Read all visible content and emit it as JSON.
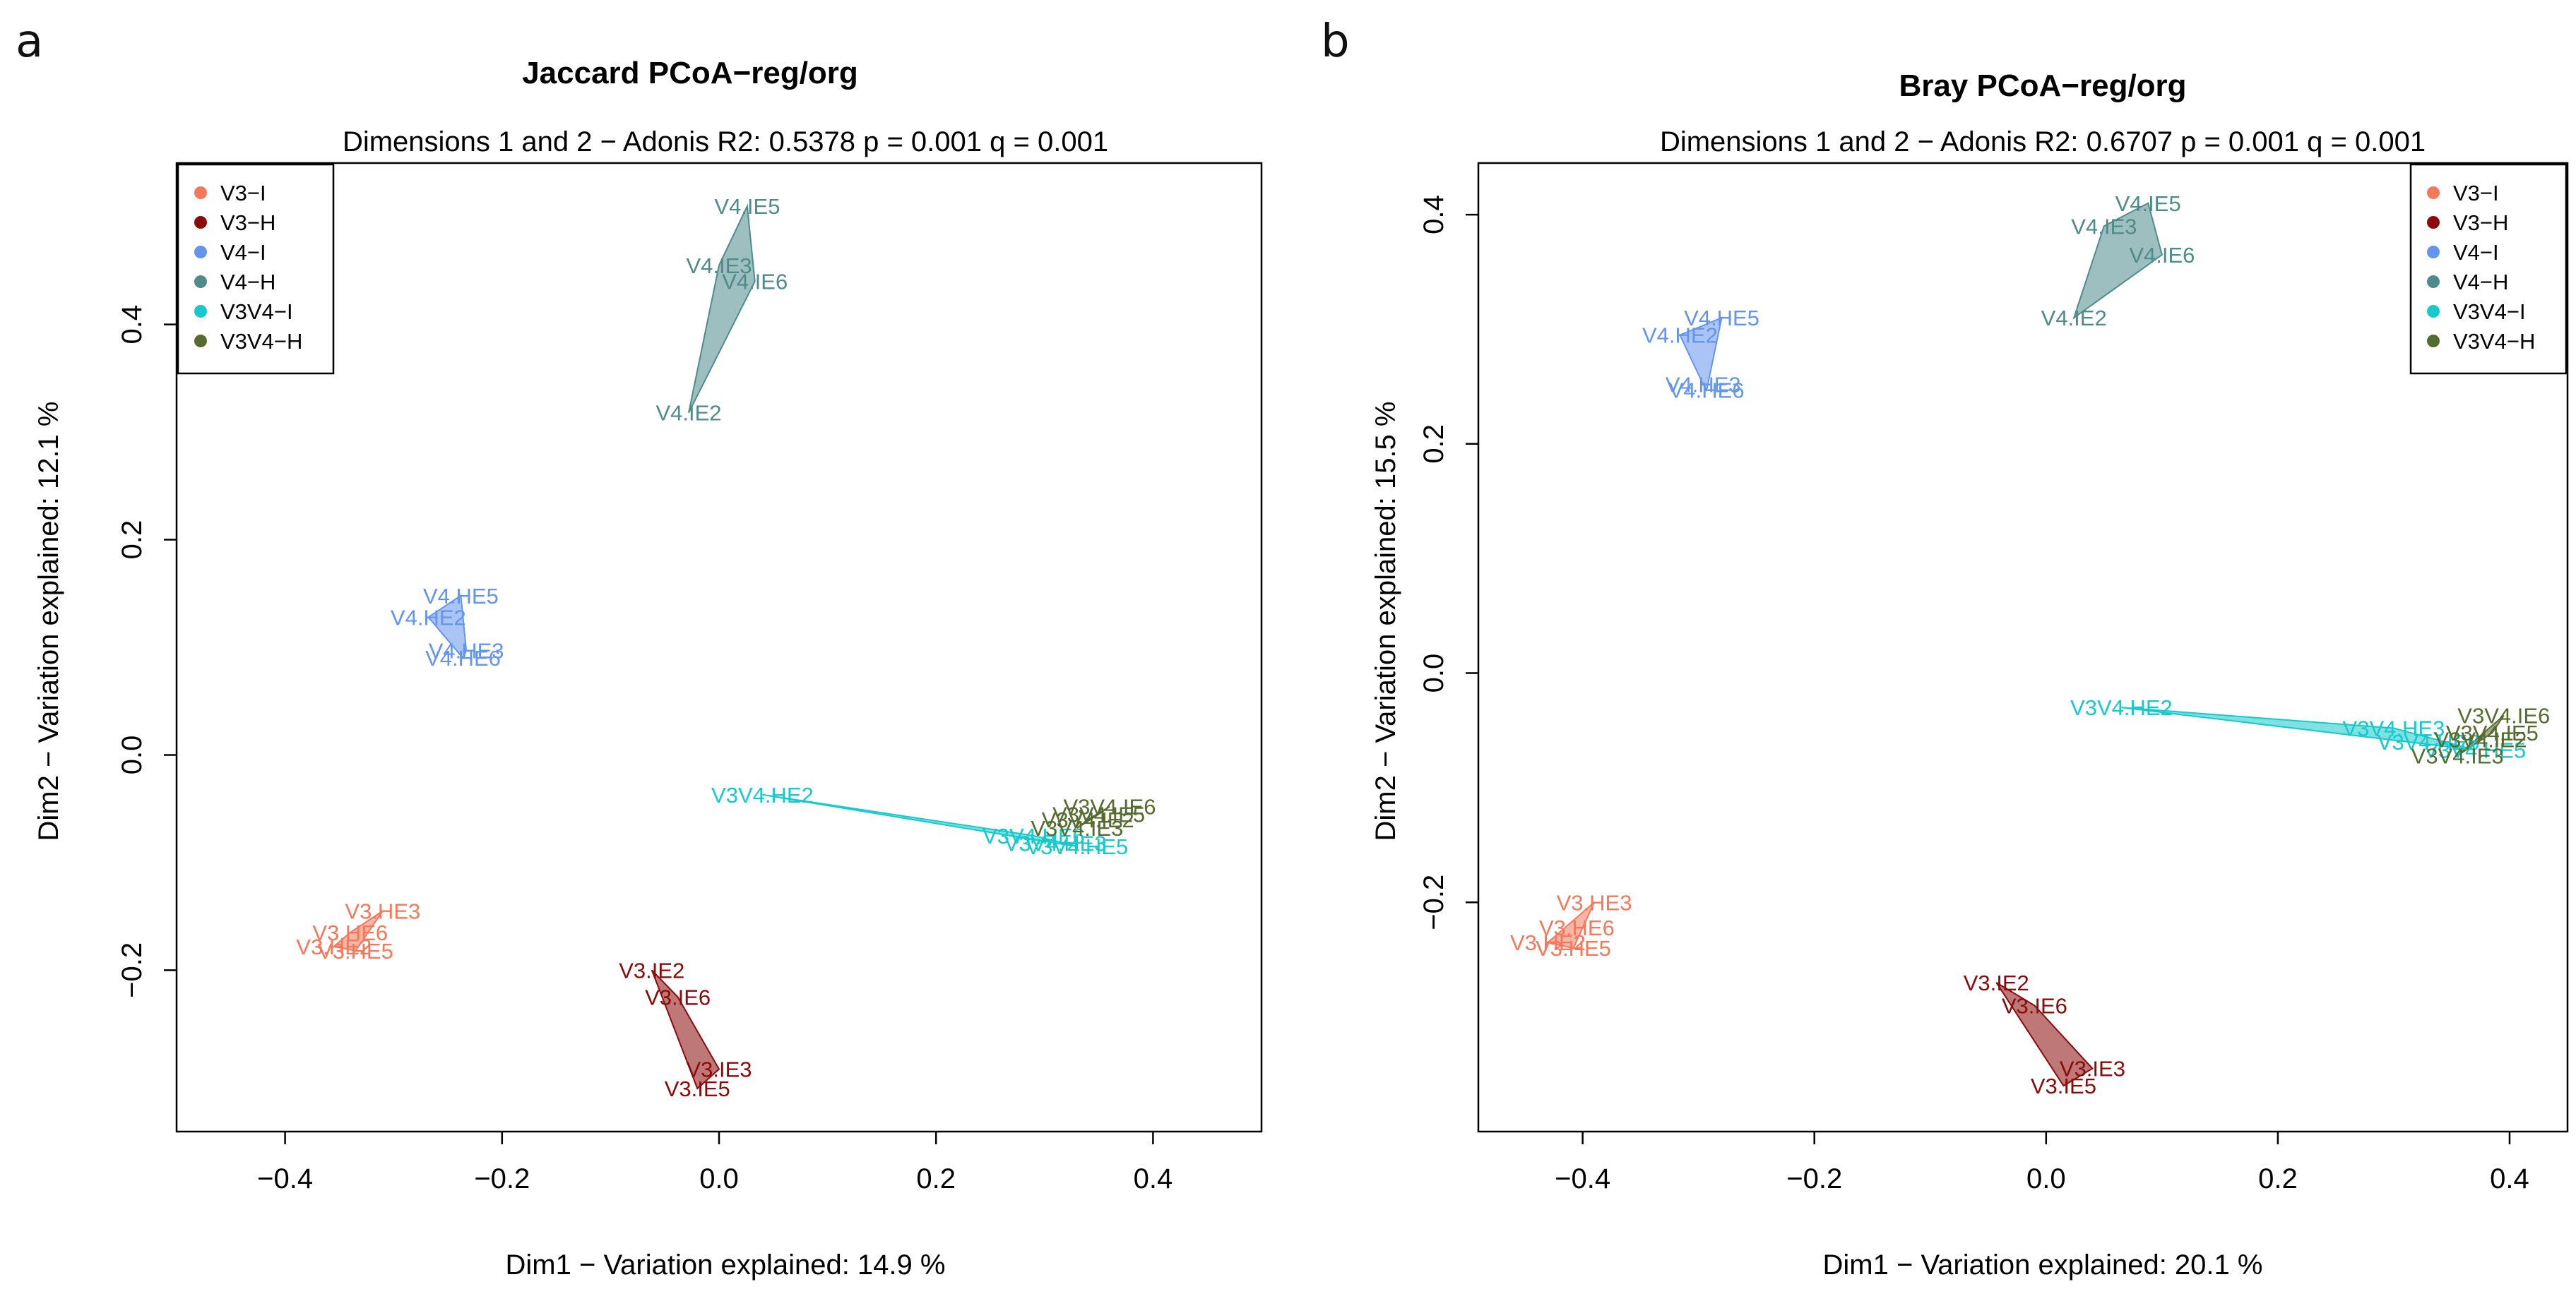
{
  "chart_data": [
    {
      "type": "scatter",
      "panel_letter": "a",
      "title": "Jaccard PCoA−reg/org",
      "subtitle": "Dimensions 1 and 2 − Adonis R2: 0.5378 p = 0.001 q = 0.001",
      "xlabel": "Dim1 − Variation explained: 14.9 %",
      "ylabel": "Dim2 − Variation explained: 12.1 %",
      "xlim": [
        -0.5,
        0.5
      ],
      "ylim": [
        -0.35,
        0.55
      ],
      "xticks": [
        -0.4,
        -0.2,
        0.0,
        0.2,
        0.4
      ],
      "xtick_labels": [
        "−0.4",
        "−0.2",
        "0.0",
        "0.2",
        "0.4"
      ],
      "yticks": [
        -0.2,
        0.0,
        0.2,
        0.4
      ],
      "ytick_labels": [
        "−0.2",
        "0.0",
        "0.2",
        "0.4"
      ],
      "legend_position": "top-left",
      "series": [
        {
          "name": "V3−I",
          "color": "#f4795b",
          "points": [
            {
              "label": "V3.HE3",
              "x": -0.31,
              "y": -0.145
            },
            {
              "label": "V3.HE6",
              "x": -0.34,
              "y": -0.165
            },
            {
              "label": "V3.HE2",
              "x": -0.355,
              "y": -0.178
            },
            {
              "label": "V3.HE5",
              "x": -0.335,
              "y": -0.182
            }
          ]
        },
        {
          "name": "V3−H",
          "color": "#8b0a0a",
          "points": [
            {
              "label": "V3.IE2",
              "x": -0.062,
              "y": -0.2
            },
            {
              "label": "V3.IE6",
              "x": -0.038,
              "y": -0.225
            },
            {
              "label": "V3.IE3",
              "x": 0.0,
              "y": -0.292
            },
            {
              "label": "V3.IE5",
              "x": -0.02,
              "y": -0.31
            }
          ]
        },
        {
          "name": "V4−I",
          "color": "#6495ed",
          "points": [
            {
              "label": "V4.HE5",
              "x": -0.238,
              "y": 0.148
            },
            {
              "label": "V4.HE2",
              "x": -0.268,
              "y": 0.128
            },
            {
              "label": "V4.HE3",
              "x": -0.233,
              "y": 0.097
            },
            {
              "label": "V4.HE6",
              "x": -0.236,
              "y": 0.09
            }
          ]
        },
        {
          "name": "V4−H",
          "color": "#4f8b8b",
          "points": [
            {
              "label": "V4.IE5",
              "x": 0.026,
              "y": 0.51
            },
            {
              "label": "V4.IE3",
              "x": 0.0,
              "y": 0.455
            },
            {
              "label": "V4.IE6",
              "x": 0.033,
              "y": 0.44
            },
            {
              "label": "V4.IE2",
              "x": -0.028,
              "y": 0.318
            }
          ]
        },
        {
          "name": "V3V4−I",
          "color": "#17c9cc",
          "points": [
            {
              "label": "V3V4.HE2",
              "x": 0.04,
              "y": -0.037
            },
            {
              "label": "V3V4.HE6",
              "x": 0.29,
              "y": -0.075
            },
            {
              "label": "V3V4.HE3",
              "x": 0.31,
              "y": -0.082
            },
            {
              "label": "V3V4.HE5",
              "x": 0.33,
              "y": -0.085
            }
          ]
        },
        {
          "name": "V3V4−H",
          "color": "#556b2f",
          "points": [
            {
              "label": "V3V4.IE6",
              "x": 0.36,
              "y": -0.048
            },
            {
              "label": "V3V4.IE5",
              "x": 0.35,
              "y": -0.055
            },
            {
              "label": "V3V4.IE2",
              "x": 0.34,
              "y": -0.06
            },
            {
              "label": "V3V4.IE3",
              "x": 0.33,
              "y": -0.068
            }
          ]
        }
      ]
    },
    {
      "type": "scatter",
      "panel_letter": "b",
      "title": "Bray PCoA−reg/org",
      "subtitle": "Dimensions 1 and 2 − Adonis R2: 0.6707 p = 0.001 q = 0.001",
      "xlabel": "Dim1 − Variation explained: 20.1 %",
      "ylabel": "Dim2 − Variation explained: 15.5 %",
      "xlim": [
        -0.49,
        0.45
      ],
      "ylim": [
        -0.4,
        0.445
      ],
      "xticks": [
        -0.4,
        -0.2,
        0.0,
        0.2,
        0.4
      ],
      "xtick_labels": [
        "−0.4",
        "−0.2",
        "0.0",
        "0.2",
        "0.4"
      ],
      "yticks": [
        -0.2,
        0.0,
        0.2,
        0.4
      ],
      "ytick_labels": [
        "−0.2",
        "0.0",
        "0.2",
        "0.4"
      ],
      "legend_position": "top-right",
      "series": [
        {
          "name": "V3−I",
          "color": "#f4795b",
          "points": [
            {
              "label": "V3.HE3",
              "x": -0.39,
              "y": -0.2
            },
            {
              "label": "V3.HE6",
              "x": -0.405,
              "y": -0.222
            },
            {
              "label": "V3.HE2",
              "x": -0.43,
              "y": -0.235
            },
            {
              "label": "V3.HE5",
              "x": -0.408,
              "y": -0.24
            }
          ]
        },
        {
          "name": "V3−H",
          "color": "#8b0a0a",
          "points": [
            {
              "label": "V3.IE2",
              "x": -0.043,
              "y": -0.27
            },
            {
              "label": "V3.IE6",
              "x": -0.01,
              "y": -0.29
            },
            {
              "label": "V3.IE3",
              "x": 0.04,
              "y": -0.345
            },
            {
              "label": "V3.IE5",
              "x": 0.015,
              "y": -0.36
            }
          ]
        },
        {
          "name": "V4−I",
          "color": "#6495ed",
          "points": [
            {
              "label": "V4.HE5",
              "x": -0.28,
              "y": 0.31
            },
            {
              "label": "V4.HE2",
              "x": -0.316,
              "y": 0.295
            },
            {
              "label": "V4.HE3",
              "x": -0.296,
              "y": 0.252
            },
            {
              "label": "V4.HE6",
              "x": -0.293,
              "y": 0.247
            }
          ]
        },
        {
          "name": "V4−H",
          "color": "#4f8b8b",
          "points": [
            {
              "label": "V4.IE5",
              "x": 0.088,
              "y": 0.41
            },
            {
              "label": "V4.IE3",
              "x": 0.05,
              "y": 0.39
            },
            {
              "label": "V4.IE6",
              "x": 0.1,
              "y": 0.365
            },
            {
              "label": "V4.IE2",
              "x": 0.024,
              "y": 0.31
            }
          ]
        },
        {
          "name": "V3V4−I",
          "color": "#17c9cc",
          "points": [
            {
              "label": "V3V4.HE2",
              "x": 0.065,
              "y": -0.03
            },
            {
              "label": "V3V4.HE3",
              "x": 0.3,
              "y": -0.048
            },
            {
              "label": "V3V4.HE6",
              "x": 0.33,
              "y": -0.06
            },
            {
              "label": "V3V4.HE5",
              "x": 0.37,
              "y": -0.067
            }
          ]
        },
        {
          "name": "V3V4−H",
          "color": "#556b2f",
          "points": [
            {
              "label": "V3V4.IE6",
              "x": 0.395,
              "y": -0.037
            },
            {
              "label": "V3V4.IE5",
              "x": 0.385,
              "y": -0.052
            },
            {
              "label": "V3V4.IE2",
              "x": 0.375,
              "y": -0.058
            },
            {
              "label": "V3V4.IE3",
              "x": 0.355,
              "y": -0.072
            }
          ]
        }
      ]
    }
  ]
}
